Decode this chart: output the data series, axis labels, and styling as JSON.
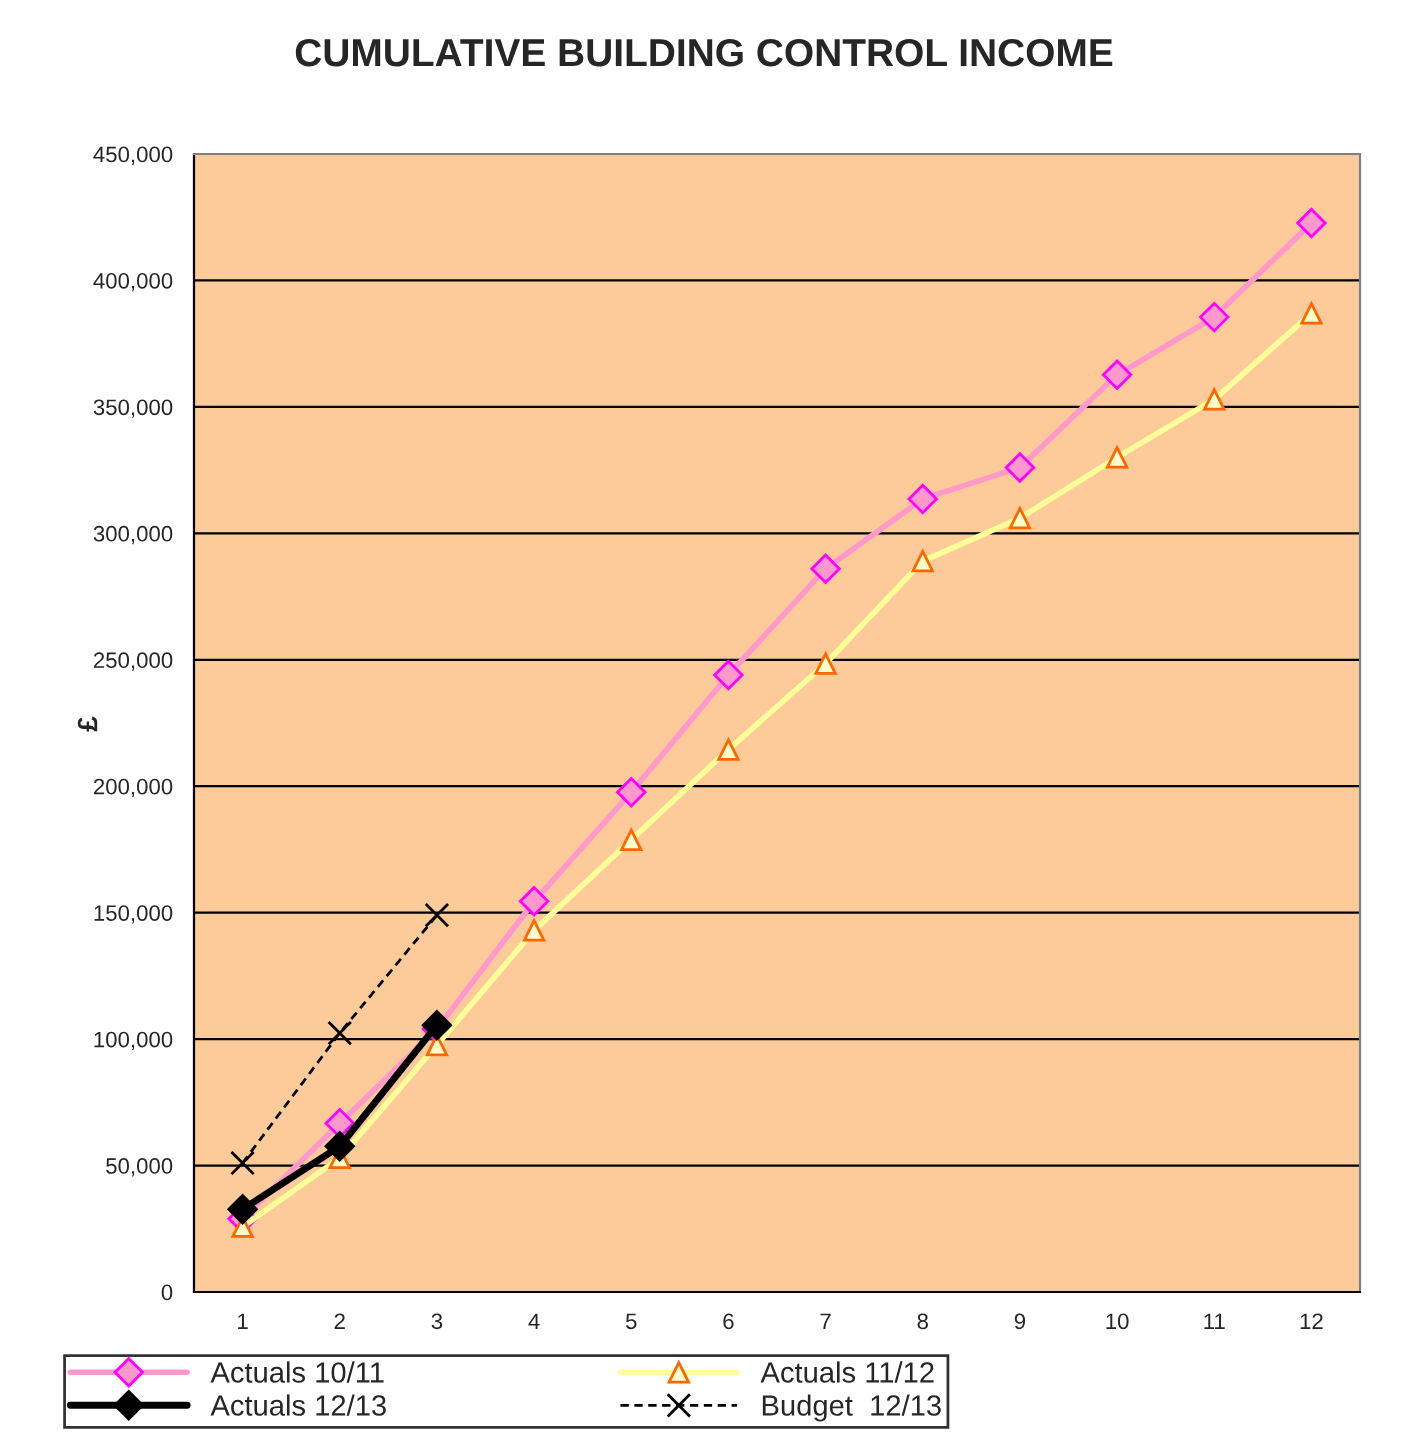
{
  "chart_data": {
    "type": "line",
    "title": "CUMULATIVE BUILDING CONTROL INCOME",
    "ylabel": "£",
    "x": [
      1,
      2,
      3,
      4,
      5,
      6,
      7,
      8,
      9,
      10,
      11,
      12
    ],
    "xlim": [
      0.5,
      12.5
    ],
    "xticks": [
      1,
      2,
      3,
      4,
      5,
      6,
      7,
      8,
      9,
      10,
      11,
      12
    ],
    "ylim": [
      0,
      450000
    ],
    "yticks": [
      {
        "value": 0,
        "label": "0"
      },
      {
        "value": 50000,
        "label": "50,000"
      },
      {
        "value": 100000,
        "label": "100,000"
      },
      {
        "value": 150000,
        "label": "150,000"
      },
      {
        "value": 200000,
        "label": "200,000"
      },
      {
        "value": 250000,
        "label": "250,000"
      },
      {
        "value": 300000,
        "label": "300,000"
      },
      {
        "value": 350000,
        "label": "350,000"
      },
      {
        "value": 400000,
        "label": "400,000"
      },
      {
        "value": 450000,
        "label": "450,000"
      }
    ],
    "grid": "y",
    "legend": "bottom",
    "series": [
      {
        "name": "Actuals 10/11",
        "color": "#ff99cc",
        "marker": "diamond",
        "line_style": "solid",
        "values": [
          29000,
          66700,
          104000,
          154500,
          197600,
          244000,
          286000,
          313600,
          326000,
          362700,
          385500,
          422700
        ]
      },
      {
        "name": "Actuals 11/12",
        "color": "#ffff99",
        "marker": "triangle",
        "line_style": "solid",
        "values": [
          25800,
          53000,
          97600,
          143000,
          178800,
          214500,
          248500,
          289000,
          306000,
          330000,
          353000,
          387000
        ]
      },
      {
        "name": "Actuals 12/13",
        "color": "#000000",
        "marker": "diamond",
        "line_style": "solid",
        "values": [
          32700,
          57600,
          105500,
          null,
          null,
          null,
          null,
          null,
          null,
          null,
          null,
          null
        ]
      },
      {
        "name": "Budget  12/13",
        "color": "#000000",
        "marker": "cross",
        "line_style": "dashed",
        "values": [
          51000,
          102400,
          149000,
          null,
          null,
          null,
          null,
          null,
          null,
          null,
          null,
          null
        ]
      }
    ]
  }
}
